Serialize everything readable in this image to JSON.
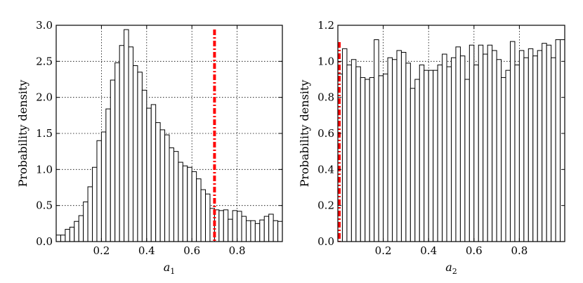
{
  "chart_data": [
    {
      "type": "bar",
      "xlabel": "a",
      "xlabel_sub": "1",
      "ylabel": "Probability density",
      "xlim": [
        0.0,
        1.0
      ],
      "ylim": [
        0.0,
        3.0
      ],
      "xticks": [
        0.2,
        0.4,
        0.6,
        0.8
      ],
      "xtick_labels": [
        "0.2",
        "0.4",
        "0.6",
        "0.8"
      ],
      "yticks": [
        0.0,
        0.5,
        1.0,
        1.5,
        2.0,
        2.5,
        3.0
      ],
      "ytick_labels": [
        "0.0",
        "0.5",
        "1.0",
        "1.5",
        "2.0",
        "2.5",
        "3.0"
      ],
      "grid": true,
      "bin_width": 0.02,
      "bin_start": 0.0,
      "values": [
        0.09,
        0.09,
        0.17,
        0.2,
        0.28,
        0.36,
        0.55,
        0.76,
        1.03,
        1.4,
        1.52,
        1.84,
        2.24,
        2.48,
        2.72,
        2.94,
        2.7,
        2.44,
        2.35,
        2.1,
        1.85,
        1.9,
        1.65,
        1.55,
        1.48,
        1.3,
        1.25,
        1.1,
        1.05,
        1.03,
        0.97,
        0.87,
        0.72,
        0.66,
        0.46,
        0.44,
        0.43,
        0.44,
        0.31,
        0.43,
        0.42,
        0.35,
        0.29,
        0.29,
        0.25,
        0.3,
        0.35,
        0.38,
        0.29,
        0.28
      ],
      "reference_line": {
        "x": 0.7,
        "color": "#ff0000",
        "style": "dash-dot"
      }
    },
    {
      "type": "bar",
      "xlabel": "a",
      "xlabel_sub": "2",
      "ylabel": "Probability density",
      "xlim": [
        0.0,
        1.0
      ],
      "ylim": [
        0.0,
        1.2
      ],
      "xticks": [
        0.2,
        0.4,
        0.6,
        0.8
      ],
      "xtick_labels": [
        "0.2",
        "0.4",
        "0.6",
        "0.8"
      ],
      "yticks": [
        0.0,
        0.2,
        0.4,
        0.6,
        0.8,
        1.0,
        1.2
      ],
      "ytick_labels": [
        "0.0",
        "0.2",
        "0.4",
        "0.6",
        "0.8",
        "1.0",
        "1.2"
      ],
      "grid": true,
      "bin_width": 0.02,
      "bin_start": 0.0,
      "values": [
        0.93,
        1.07,
        0.98,
        1.01,
        0.97,
        0.91,
        0.9,
        0.91,
        1.12,
        0.92,
        0.93,
        1.02,
        1.01,
        1.06,
        1.05,
        0.99,
        0.85,
        0.9,
        0.98,
        0.95,
        0.95,
        0.95,
        0.98,
        1.04,
        0.97,
        1.02,
        1.08,
        1.03,
        0.9,
        1.09,
        0.98,
        1.09,
        1.04,
        1.09,
        1.06,
        1.01,
        0.91,
        0.95,
        1.11,
        0.98,
        1.06,
        1.02,
        1.07,
        1.03,
        1.06,
        1.1,
        1.09,
        1.02,
        1.12,
        1.12
      ],
      "reference_line": {
        "x": 0.0,
        "color": "#ff0000",
        "style": "dash-dot"
      }
    }
  ]
}
